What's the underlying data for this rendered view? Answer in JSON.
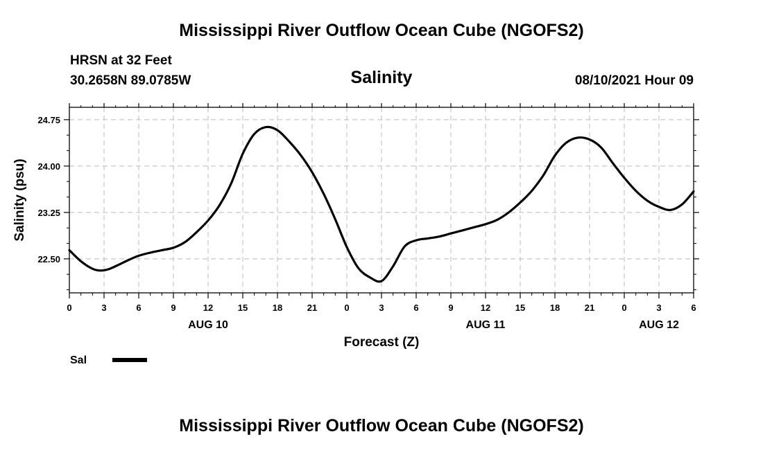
{
  "header": {
    "title": "Mississippi River Outflow Ocean Cube (NGOFS2)",
    "station": "HRSN at 32 Feet",
    "coords": "30.2658N  89.0785W",
    "variable": "Salinity",
    "datetime": "08/10/2021 Hour 09"
  },
  "footer": {
    "title": "Mississippi River Outflow Ocean Cube (NGOFS2)"
  },
  "chart_data": {
    "type": "line",
    "title": "Salinity",
    "xlabel": "Forecast (Z)",
    "ylabel": "Salinity (psu)",
    "xlim": [
      0,
      54
    ],
    "ylim": [
      21.95,
      24.95
    ],
    "x_ticks": [
      0,
      3,
      6,
      9,
      12,
      15,
      18,
      21,
      24,
      27,
      30,
      33,
      36,
      39,
      42,
      45,
      48,
      51,
      54
    ],
    "x_tick_labels": [
      "0",
      "3",
      "6",
      "9",
      "12",
      "15",
      "18",
      "21",
      "0",
      "3",
      "6",
      "9",
      "12",
      "15",
      "18",
      "21",
      "0",
      "3",
      "6"
    ],
    "y_ticks": [
      22.5,
      23.25,
      24.0,
      24.75
    ],
    "y_tick_labels": [
      "22.50",
      "23.25",
      "24.00",
      "24.75"
    ],
    "day_labels": [
      {
        "x": 12,
        "label": "AUG 10"
      },
      {
        "x": 36,
        "label": "AUG 11"
      },
      {
        "x": 51,
        "label": "AUG 12"
      }
    ],
    "grid": true,
    "legend": [
      {
        "name": "Sal",
        "position": "below-left"
      }
    ],
    "series": [
      {
        "name": "Sal",
        "x": [
          0,
          1,
          2,
          2.7,
          3.5,
          5,
          6,
          7,
          8,
          9,
          10,
          11,
          12,
          13,
          14,
          15,
          16,
          17,
          18,
          19,
          20,
          21,
          22,
          23,
          24,
          25,
          26,
          27,
          28,
          29,
          30,
          31,
          32,
          33,
          34,
          35,
          36,
          37,
          38,
          39,
          40,
          41,
          42,
          43,
          44,
          45,
          46,
          47,
          48,
          49,
          50,
          51,
          52,
          53,
          54
        ],
        "y": [
          22.64,
          22.46,
          22.34,
          22.31,
          22.34,
          22.47,
          22.55,
          22.6,
          22.64,
          22.68,
          22.77,
          22.93,
          23.12,
          23.37,
          23.72,
          24.2,
          24.52,
          24.63,
          24.58,
          24.4,
          24.18,
          23.9,
          23.55,
          23.14,
          22.69,
          22.35,
          22.2,
          22.14,
          22.38,
          22.7,
          22.8,
          22.83,
          22.86,
          22.91,
          22.96,
          23.01,
          23.06,
          23.13,
          23.25,
          23.41,
          23.6,
          23.85,
          24.17,
          24.38,
          24.46,
          24.43,
          24.3,
          24.05,
          23.81,
          23.6,
          23.44,
          23.34,
          23.29,
          23.38,
          23.59
        ]
      }
    ]
  }
}
